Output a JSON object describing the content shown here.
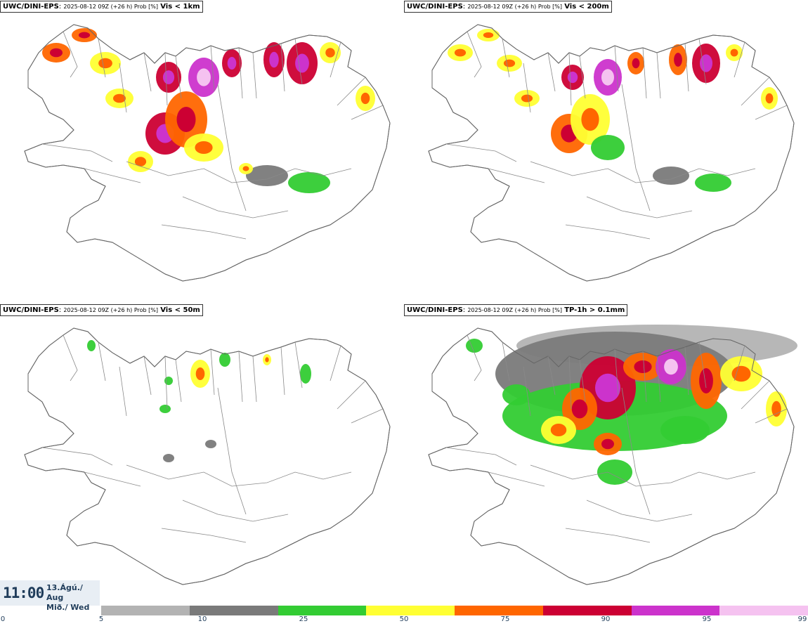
{
  "panels": [
    {
      "model": "UWC/DINI-EPS",
      "run": "2025-08-12 09Z (+26 h) Prob [%]",
      "variable": "Vis < 1km"
    },
    {
      "model": "UWC/DINI-EPS",
      "run": "2025-08-12 09Z (+26 h) Prob [%]",
      "variable": "Vis < 200m"
    },
    {
      "model": "UWC/DINI-EPS",
      "run": "2025-08-12 09Z (+26 h) Prob [%]",
      "variable": "Vis < 50m"
    },
    {
      "model": "UWC/DINI-EPS",
      "run": "2025-08-12 09Z (+26 h) Prob [%]",
      "variable": "TP-1h > 0.1mm"
    }
  ],
  "valid_time": {
    "time": "11:00",
    "date_line1": "13.Ágú./ Aug",
    "date_line2": "Mið./ Wed"
  },
  "colorbar": {
    "ticks": [
      "0",
      "5",
      "10",
      "25",
      "50",
      "75",
      "90",
      "95",
      "99"
    ],
    "colors": [
      "#b3b3b3",
      "#7a7a7a",
      "#33cc33",
      "#ffff33",
      "#ff6600",
      "#cc0033",
      "#cc33cc",
      "#f5c2f0"
    ]
  },
  "map_colors": {
    "land_line": "#666666",
    "fill_low": "#8c8c8c",
    "fill_light": "#b3b3b3"
  }
}
